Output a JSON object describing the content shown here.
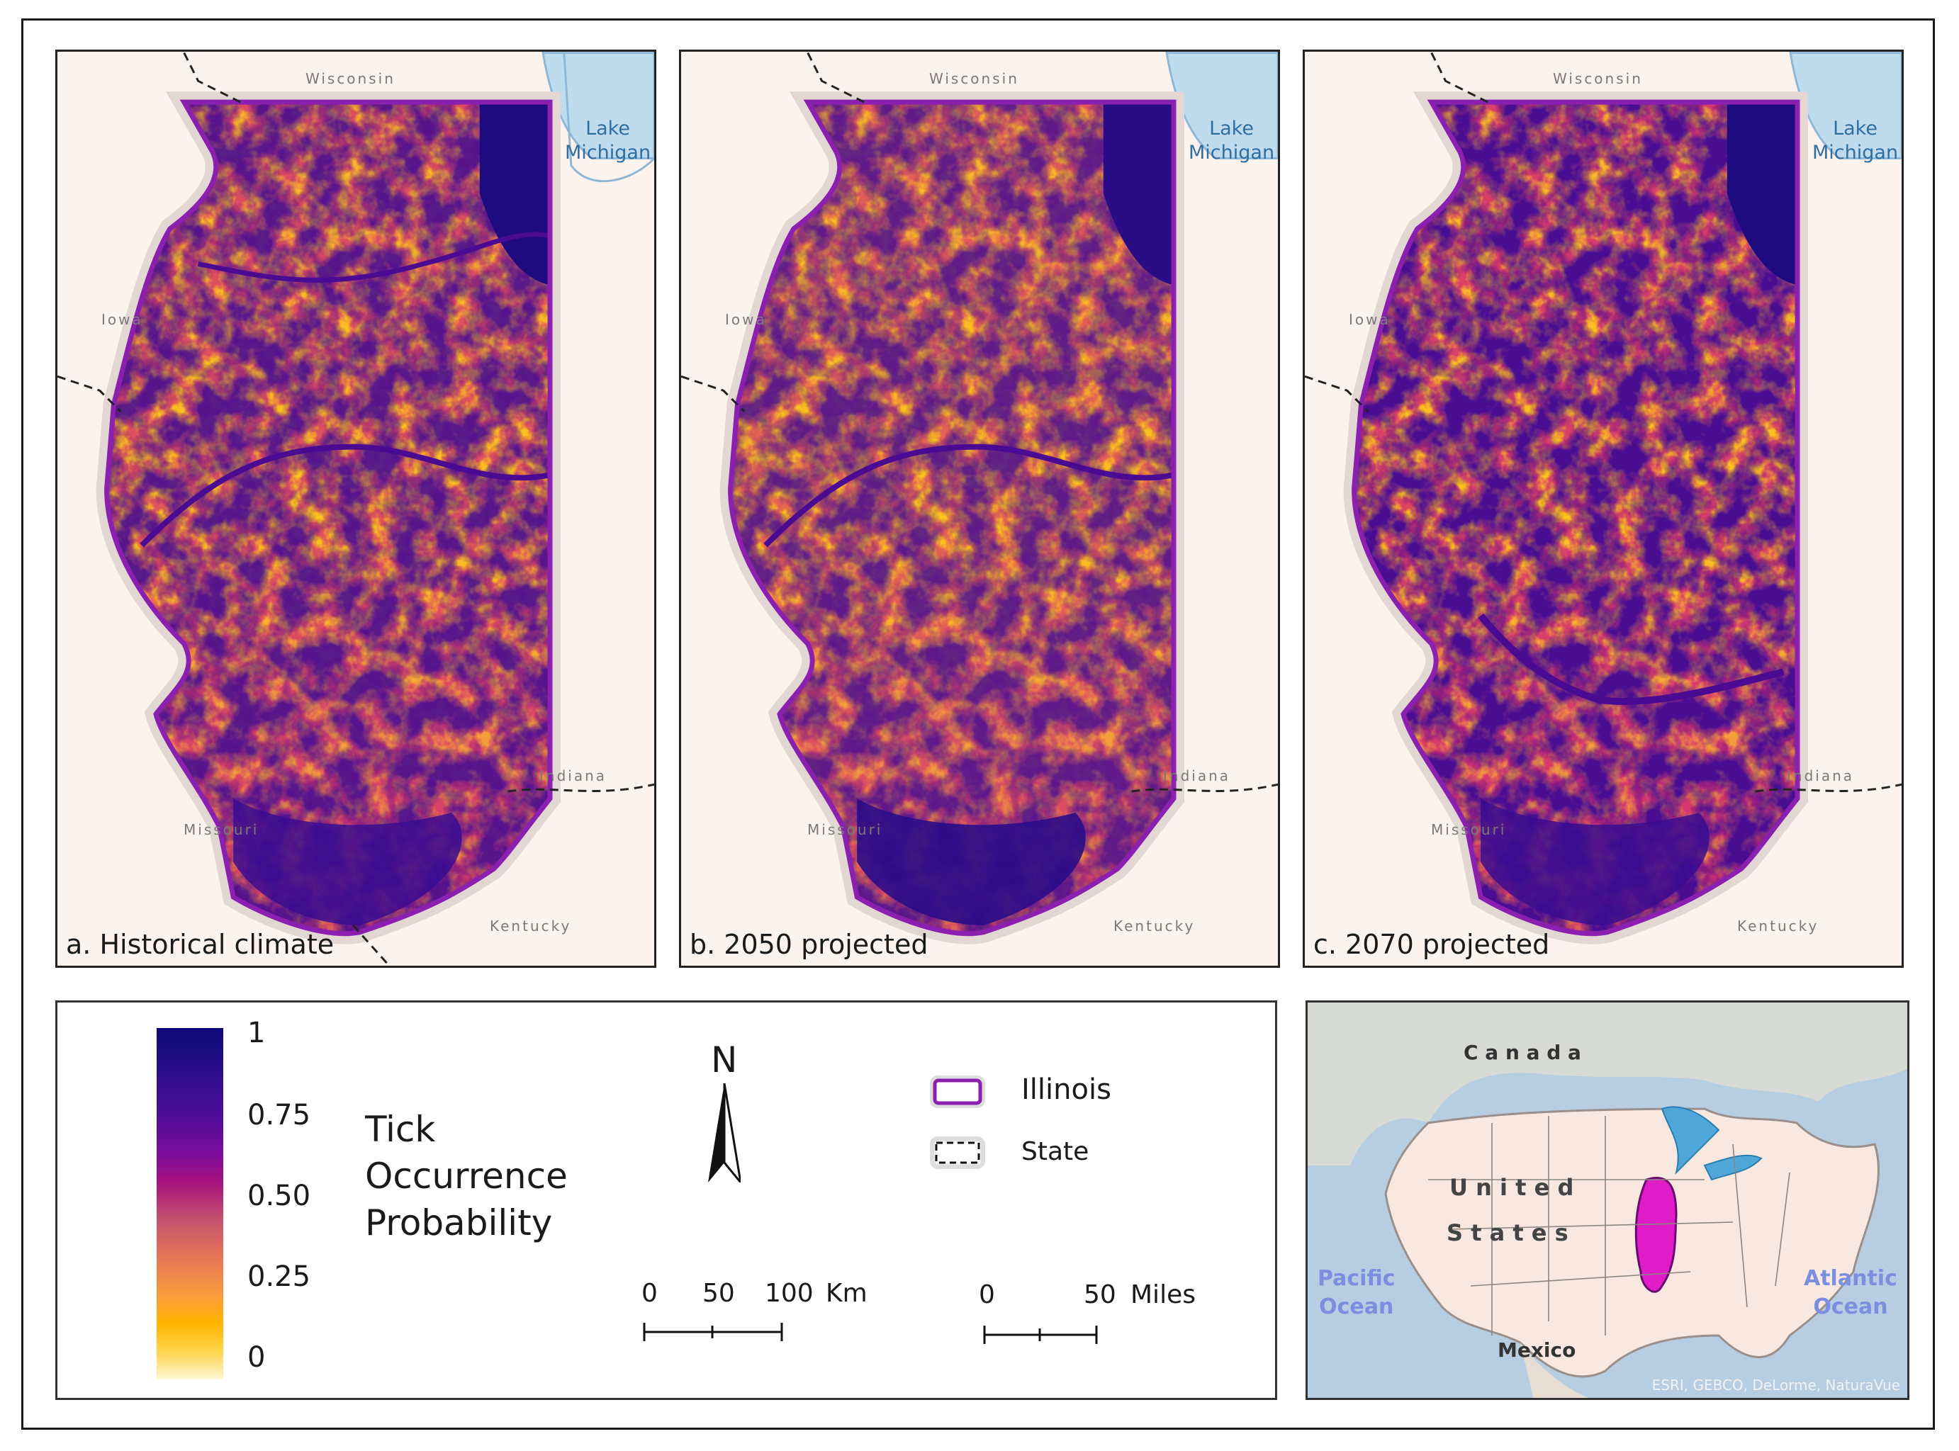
{
  "panels": [
    {
      "caption": "a. Historical climate"
    },
    {
      "caption": "b. 2050 projected"
    },
    {
      "caption": "c. 2070 projected"
    }
  ],
  "map_labels": {
    "wisconsin": "Wisconsin",
    "iowa": "Iowa",
    "missouri": "Missouri",
    "indiana": "Indiana",
    "kentucky": "Kentucky",
    "lake_line1": "Lake",
    "lake_line2": "Michigan"
  },
  "legend": {
    "title_line1": "Tick",
    "title_line2": "Occurrence",
    "title_line3": "Probability",
    "ticks": [
      "1",
      "0.75",
      "0.50",
      "0.25",
      "0"
    ],
    "colors": {
      "high": "#0c0a7a",
      "mid": "#a8127d",
      "low": "#ffb400",
      "min": "#fff6d6",
      "illinois_outline": "#8a1fb0"
    },
    "north": "N",
    "scale_km": {
      "t0": "0",
      "t1": "50",
      "t2": "100",
      "unit": "Km"
    },
    "scale_mi": {
      "t0": "0",
      "t1": "50",
      "unit": "Miles"
    },
    "illinois": "Illinois",
    "state": "State"
  },
  "inset": {
    "canada": "C a n a d a",
    "us1": "U n i t e d",
    "us2": "S t a t e s",
    "mexico": "Mexico",
    "pacific1": "Pacific",
    "pacific2": "Ocean",
    "atlantic1": "Atlantic",
    "atlantic2": "Ocean",
    "credit": "ESRI, GEBCO, DeLorme, NaturaVue"
  }
}
